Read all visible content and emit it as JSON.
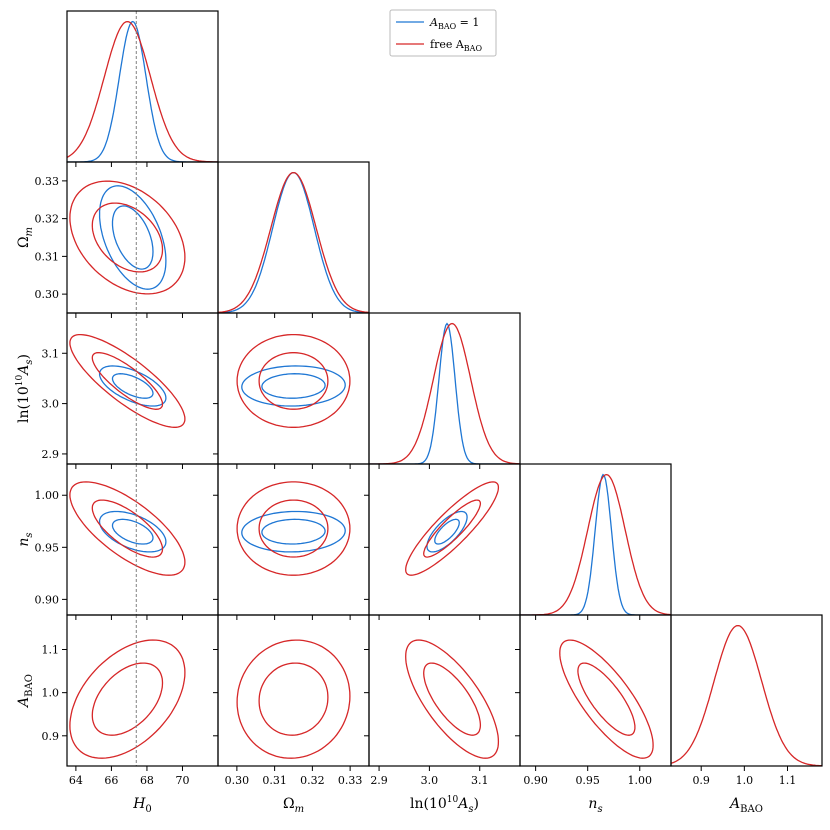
{
  "chart_data": {
    "type": "corner",
    "parameters": [
      "H0",
      "Omega_m",
      "ln10As",
      "n_s",
      "A_BAO"
    ],
    "axis_labels": {
      "H0": "H0",
      "Omega_m": "Ωm",
      "ln10As": "ln(10¹⁰As)",
      "n_s": "ns",
      "A_BAO": "ABAO"
    },
    "ranges": {
      "H0": [
        63.5,
        72.0
      ],
      "Omega_m": [
        0.295,
        0.335
      ],
      "ln10As": [
        2.88,
        3.18
      ],
      "n_s": [
        0.885,
        1.03
      ],
      "A_BAO": [
        0.83,
        1.18
      ]
    },
    "ticks": {
      "H0": [
        64,
        66,
        68,
        70
      ],
      "Omega_m": [
        0.3,
        0.31,
        0.32,
        0.33
      ],
      "ln10As": [
        2.9,
        3.0,
        3.1
      ],
      "n_s": [
        0.9,
        0.95,
        1.0
      ],
      "A_BAO": [
        0.9,
        1.0,
        1.1
      ]
    },
    "tick_labels": {
      "H0": [
        "64",
        "66",
        "68",
        "70"
      ],
      "Omega_m": [
        "0.30",
        "0.31",
        "0.32",
        "0.33"
      ],
      "ln10As": [
        "2.9",
        "3.0",
        "3.1"
      ],
      "n_s": [
        "0.90",
        "0.95",
        "1.00"
      ],
      "A_BAO": [
        "0.9",
        "1.0",
        "1.1"
      ]
    },
    "fiducial": {
      "H0": 67.4
    },
    "series": [
      {
        "name": "A_BAO = 1",
        "label_main": "A",
        "label_sub": "BAO",
        "label_rest": " = 1",
        "color": "#1f77d4",
        "mean": {
          "H0": 67.2,
          "Omega_m": 0.315,
          "ln10As": 3.035,
          "n_s": 0.965
        },
        "sigma": {
          "H0": 0.75,
          "Omega_m": 0.0055,
          "ln10As": 0.016,
          "n_s": 0.0078
        },
        "corr": {
          "H0|Omega_m": -0.45,
          "H0|ln10As": -0.6,
          "H0|n_s": -0.5,
          "Omega_m|ln10As": 0.05,
          "Omega_m|n_s": 0.05,
          "ln10As|n_s": 0.72
        }
      },
      {
        "name": "free A_BAO",
        "label_main": "free A",
        "label_sub": "BAO",
        "label_rest": "",
        "color": "#d62728",
        "mean": {
          "H0": 66.9,
          "Omega_m": 0.315,
          "ln10As": 3.045,
          "n_s": 0.968,
          "A_BAO": 0.985
        },
        "sigma": {
          "H0": 1.3,
          "Omega_m": 0.006,
          "ln10As": 0.037,
          "n_s": 0.018,
          "A_BAO": 0.055
        },
        "corr": {
          "H0|Omega_m": -0.35,
          "H0|ln10As": -0.82,
          "H0|n_s": -0.72,
          "H0|A_BAO": 0.45,
          "Omega_m|ln10As": 0.0,
          "Omega_m|n_s": 0.0,
          "Omega_m|A_BAO": 0.05,
          "ln10As|n_s": 0.88,
          "ln10As|A_BAO": -0.72,
          "n_s|A_BAO": -0.78
        }
      }
    ],
    "legend_position": "top-right"
  }
}
